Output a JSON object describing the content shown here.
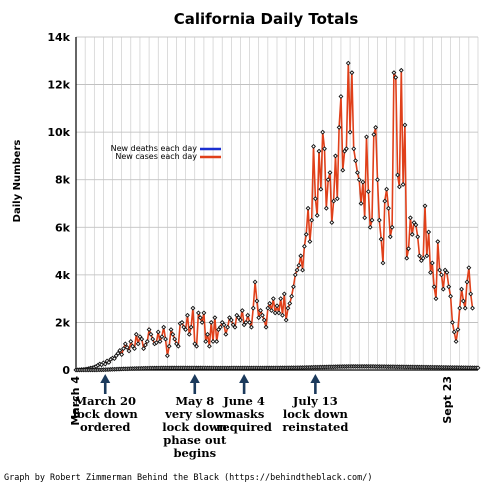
{
  "chart_data": {
    "type": "line",
    "title": "California Daily Totals",
    "ylabel": "Daily Numbers",
    "xlabel": "",
    "ylim": [
      0,
      14000
    ],
    "y_ticks": [
      0,
      2000,
      4000,
      6000,
      8000,
      10000,
      12000,
      14000
    ],
    "y_tick_labels": [
      "0",
      "2k",
      "4k",
      "6k",
      "8k",
      "10k",
      "12k",
      "14k"
    ],
    "x_start_label": "March 4",
    "x_end_label": "Sept 23",
    "x_axis_days": 220,
    "grid": true,
    "legend_position": "upper-left",
    "series": [
      {
        "name": "New deaths each day",
        "color": "#1a2fd0",
        "start_day": 0,
        "values": [
          0,
          0,
          0,
          0,
          0,
          1,
          1,
          2,
          3,
          3,
          5,
          5,
          7,
          8,
          10,
          12,
          15,
          18,
          20,
          24,
          28,
          30,
          34,
          38,
          40,
          44,
          48,
          50,
          52,
          55,
          58,
          60,
          62,
          64,
          66,
          68,
          70,
          72,
          74,
          76,
          78,
          80,
          80,
          82,
          82,
          84,
          84,
          85,
          85,
          86,
          86,
          86,
          87,
          87,
          87,
          88,
          88,
          88,
          88,
          88,
          88,
          88,
          88,
          88,
          88,
          88,
          87,
          87,
          87,
          86,
          86,
          86,
          85,
          85,
          85,
          84,
          84,
          84,
          84,
          84,
          84,
          84,
          84,
          84,
          84,
          85,
          85,
          85,
          85,
          85,
          85,
          85,
          85,
          85,
          85,
          86,
          86,
          86,
          86,
          86,
          86,
          86,
          86,
          86,
          87,
          87,
          87,
          88,
          88,
          88,
          89,
          89,
          90,
          90,
          91,
          92,
          93,
          94,
          95,
          96,
          97,
          98,
          99,
          100,
          102,
          104,
          106,
          108,
          110,
          112,
          114,
          116,
          118,
          120,
          122,
          124,
          126,
          128,
          130,
          132,
          134,
          136,
          138,
          140,
          142,
          144,
          145,
          146,
          147,
          148,
          149,
          150,
          150,
          150,
          150,
          150,
          150,
          150,
          150,
          150,
          150,
          150,
          149,
          148,
          147,
          146,
          145,
          144,
          143,
          142,
          141,
          140,
          139,
          138,
          137,
          136,
          135,
          134,
          133,
          132,
          131,
          130,
          129,
          128,
          127,
          126,
          125,
          124,
          123,
          122,
          121,
          120,
          119,
          118,
          117,
          116,
          115,
          114,
          113,
          112,
          111,
          110,
          109,
          108,
          107,
          106,
          105,
          104,
          103,
          102,
          101,
          100,
          99,
          98,
          97,
          96,
          95,
          94,
          93,
          92,
          91
        ]
      },
      {
        "name": "New cases each day",
        "color": "#e0401a",
        "start_day": 0,
        "values": [
          5,
          10,
          10,
          20,
          20,
          30,
          40,
          60,
          80,
          90,
          120,
          150,
          200,
          250,
          220,
          300,
          250,
          380,
          320,
          450,
          500,
          480,
          600,
          700,
          820,
          650,
          900,
          1100,
          950,
          800,
          1200,
          1000,
          900,
          1500,
          1100,
          1400,
          1300,
          900,
          1050,
          1200,
          1700,
          1500,
          1300,
          1100,
          1150,
          1600,
          1200,
          1400,
          1800,
          1300,
          600,
          1000,
          1700,
          1500,
          1300,
          1100,
          1000,
          1950,
          2000,
          1800,
          1700,
          2300,
          1500,
          1800,
          2600,
          1100,
          1000,
          2400,
          2200,
          2000,
          2400,
          1200,
          1500,
          1000,
          2000,
          1200,
          2200,
          1200,
          1700,
          1800,
          2000,
          1900,
          1500,
          1800,
          2200,
          2100,
          1900,
          1800,
          2300,
          2200,
          2100,
          2500,
          1900,
          2000,
          2300,
          2000,
          1800,
          2600,
          3700,
          2900,
          2200,
          2500,
          2300,
          2100,
          1800,
          2600,
          2800,
          2500,
          3000,
          2400,
          2700,
          2400,
          3000,
          2300,
          3200,
          2100,
          2600,
          2800,
          3100,
          3500,
          4000,
          4200,
          4400,
          4800,
          4200,
          5200,
          5700,
          6800,
          5400,
          6300,
          9400,
          7200,
          6500,
          9200,
          7600,
          10000,
          9300,
          6800,
          8000,
          8300,
          6200,
          7100,
          9000,
          7200,
          10200,
          11500,
          8400,
          9200,
          9300,
          12900,
          10000,
          12500,
          9300,
          8800,
          8300,
          8000,
          7000,
          7900,
          6400,
          9800,
          7500,
          6000,
          6300,
          9900,
          10200,
          8000,
          6300,
          5500,
          4500,
          7100,
          7600,
          6800,
          5600,
          6000,
          12500,
          12300,
          8200,
          7700,
          12600,
          7800,
          10300,
          4700,
          5100,
          6400,
          5700,
          6200,
          6100,
          5600,
          4800,
          4600,
          4700,
          6900,
          4800,
          5800,
          4100,
          4500,
          3500,
          3000,
          5400,
          4200,
          4000,
          3400,
          4200,
          4100,
          3500,
          3100,
          2000,
          1600,
          1200,
          1700,
          2600,
          3400,
          2900,
          2600,
          3700,
          4300,
          3200,
          2600
        ]
      }
    ],
    "annotations": [
      {
        "day": 16,
        "lines": [
          "March 20",
          "lock down",
          "ordered"
        ]
      },
      {
        "day": 65,
        "lines": [
          "May 8",
          "very slow",
          "lock down",
          "phase out",
          "begins"
        ]
      },
      {
        "day": 92,
        "lines": [
          "June 4",
          "masks",
          "required"
        ]
      },
      {
        "day": 131,
        "lines": [
          "July 13",
          "lock down",
          "reinstated"
        ]
      }
    ]
  },
  "credit": "Graph by Robert Zimmerman Behind the Black (https://behindtheblack.com/)"
}
